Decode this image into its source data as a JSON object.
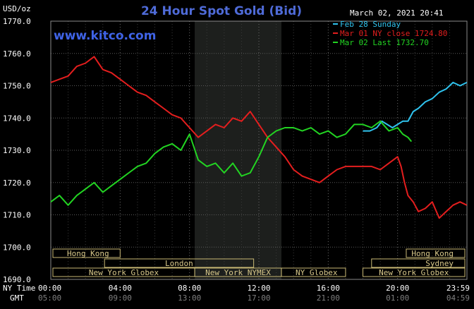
{
  "chart_data": {
    "type": "line",
    "title": "24 Hour Spot Gold (Bid)",
    "ylabel": "USD/oz",
    "brand": "www.kitco.com",
    "timestamp": "March 02, 2021 20:41",
    "ylim": [
      1690,
      1770
    ],
    "yticks": [
      "1770.0",
      "1760.0",
      "1750.0",
      "1740.0",
      "1730.0",
      "1720.0",
      "1710.0",
      "1700.0",
      "1690.0"
    ],
    "ytick_values": [
      1770,
      1760,
      1750,
      1740,
      1730,
      1720,
      1710,
      1700,
      1690
    ],
    "xlim": [
      0,
      24
    ],
    "x_row_labels": {
      "ny": "NY Time",
      "gmt": "GMT"
    },
    "xticks_ny": [
      "00:00",
      "04:00",
      "08:00",
      "12:00",
      "16:00",
      "20:00",
      "23:59"
    ],
    "xticks_gmt": [
      "05:00",
      "09:00",
      "13:00",
      "17:00",
      "21:00",
      "01:00",
      "04:59"
    ],
    "xtick_hours": [
      0,
      4,
      8,
      12,
      16,
      20,
      24
    ],
    "grid": true,
    "legend_position": "top-right",
    "shaded_region_hours": [
      8.3,
      13.3
    ],
    "series": [
      {
        "name": "Feb 28 Sunday",
        "legend": "Feb 28 Sunday",
        "color": "#2fc3ee",
        "x": [
          18.0,
          18.4,
          18.8,
          19.1,
          19.4,
          19.7,
          20.0,
          20.3,
          20.6,
          20.9,
          21.2,
          21.6,
          22.0,
          22.4,
          22.8,
          23.2,
          23.6,
          23.99
        ],
        "y": [
          1736,
          1736,
          1737,
          1739,
          1738,
          1737,
          1738,
          1739,
          1739,
          1742,
          1743,
          1745,
          1746,
          1748,
          1749,
          1751,
          1750,
          1751
        ]
      },
      {
        "name": "Mar 01 NY close 1724.80",
        "legend": "Mar 01 NY close 1724.80",
        "color": "#e41e1e",
        "x": [
          0,
          0.5,
          1.0,
          1.5,
          2.0,
          2.5,
          3.0,
          3.5,
          4.0,
          4.5,
          5.0,
          5.5,
          6.0,
          6.5,
          7.0,
          7.5,
          8.0,
          8.5,
          9.0,
          9.5,
          10.0,
          10.5,
          11.0,
          11.5,
          12.0,
          12.5,
          13.0,
          13.5,
          14.0,
          14.5,
          15.0,
          15.5,
          16.0,
          16.5,
          17.0,
          17.5,
          18.0,
          18.5,
          19.0,
          19.5,
          20.0,
          20.2,
          20.4,
          20.6,
          20.9,
          21.2,
          21.6,
          22.0,
          22.4,
          22.8,
          23.2,
          23.6,
          23.99
        ],
        "y": [
          1751,
          1752,
          1753,
          1756,
          1757,
          1759,
          1755,
          1754,
          1752,
          1750,
          1748,
          1747,
          1745,
          1743,
          1741,
          1740,
          1737,
          1734,
          1736,
          1738,
          1737,
          1740,
          1739,
          1742,
          1738,
          1734,
          1731,
          1728,
          1724,
          1722,
          1721,
          1720,
          1722,
          1724,
          1725,
          1725,
          1725,
          1725,
          1724,
          1726,
          1728,
          1725,
          1720,
          1716,
          1714,
          1711,
          1712,
          1714,
          1709,
          1711,
          1713,
          1714,
          1713
        ]
      },
      {
        "name": "Mar 02 Last 1732.70",
        "legend": "Mar 02 Last 1732.70",
        "color": "#22d422",
        "x": [
          0,
          0.5,
          1.0,
          1.5,
          2.0,
          2.5,
          3.0,
          3.5,
          4.0,
          4.5,
          5.0,
          5.5,
          6.0,
          6.5,
          7.0,
          7.5,
          8.0,
          8.5,
          9.0,
          9.5,
          10.0,
          10.5,
          11.0,
          11.5,
          12.0,
          12.5,
          13.0,
          13.5,
          14.0,
          14.5,
          15.0,
          15.5,
          16.0,
          16.5,
          17.0,
          17.5,
          18.0,
          18.5,
          19.0,
          19.5,
          20.0,
          20.3,
          20.6,
          20.8
        ],
        "y": [
          1714,
          1716,
          1713,
          1716,
          1718,
          1720,
          1717,
          1719,
          1721,
          1723,
          1725,
          1726,
          1729,
          1731,
          1732,
          1730,
          1735,
          1727,
          1725,
          1726,
          1723,
          1726,
          1722,
          1723,
          1728,
          1734,
          1736,
          1737,
          1737,
          1736,
          1737,
          1735,
          1736,
          1734,
          1735,
          1738,
          1738,
          1737,
          1739,
          1736,
          1737,
          1735,
          1734,
          1732.7
        ]
      }
    ],
    "sessions": [
      {
        "label": "Hong Kong",
        "start": 0,
        "end": 4,
        "row": 0,
        "align": "left"
      },
      {
        "label": "Hong Kong",
        "start": 20.5,
        "end": 24,
        "row": 0,
        "align": "right"
      },
      {
        "label": "London",
        "start": 3.1,
        "end": 11.7,
        "row": 1,
        "align": "center"
      },
      {
        "label": "Sydney",
        "start": 18.5,
        "end": 24,
        "row": 1,
        "align": "right"
      },
      {
        "label": "New York Globex",
        "start": 0,
        "end": 8.3,
        "row": 2,
        "align": "center"
      },
      {
        "label": "New York NYMEX",
        "start": 8.3,
        "end": 13.3,
        "row": 2,
        "align": "center"
      },
      {
        "label": "NY Globex",
        "start": 13.3,
        "end": 17.0,
        "row": 2,
        "align": "left"
      },
      {
        "label": "New York Globex",
        "start": 18.0,
        "end": 24,
        "row": 2,
        "align": "center"
      }
    ]
  }
}
